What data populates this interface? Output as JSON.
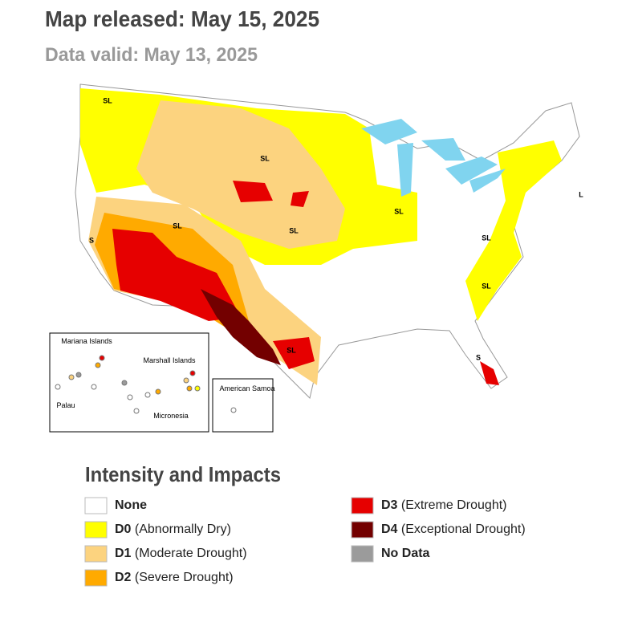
{
  "header": {
    "title": "Map released: May 15, 2025",
    "subtitle": "Data valid: May 13, 2025"
  },
  "map": {
    "labels": [
      "SL",
      "SL",
      "SL",
      "SL",
      "SL",
      "SL",
      "SL",
      "SL",
      "S",
      "S",
      "L"
    ],
    "insets": [
      "Mariana Islands",
      "Marshall Islands",
      "Palau",
      "Micronesia",
      "American Samoa"
    ]
  },
  "legend": {
    "title": "Intensity and Impacts",
    "items": [
      {
        "code": "None",
        "color": "#ffffff"
      },
      {
        "code": "D0",
        "description": "(Abnormally Dry)",
        "color": "#ffff00"
      },
      {
        "code": "D1",
        "description": "(Moderate Drought)",
        "color": "#fcd37f"
      },
      {
        "code": "D2",
        "description": "(Severe Drought)",
        "color": "#ffaa00"
      },
      {
        "code": "D3",
        "description": "(Extreme Drought)",
        "color": "#e60000"
      },
      {
        "code": "D4",
        "description": "(Exceptional Drought)",
        "color": "#730000"
      },
      {
        "code": "No Data",
        "color": "#9b9b9b"
      }
    ]
  }
}
